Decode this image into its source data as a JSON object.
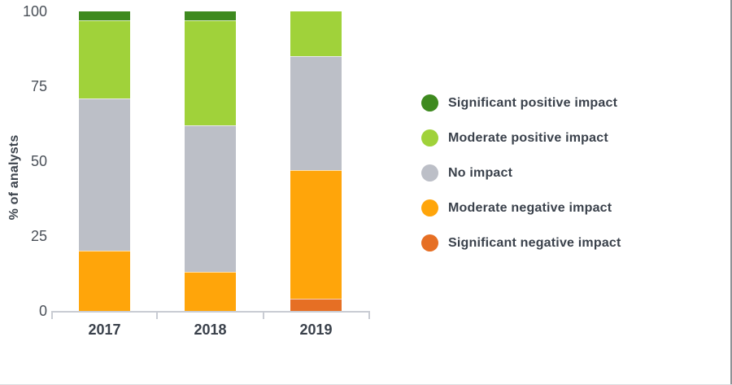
{
  "chart_data": {
    "type": "bar",
    "stacked": true,
    "title": "",
    "ylabel": "% of analysts",
    "ylim": [
      0,
      100
    ],
    "yticks": [
      0,
      25,
      50,
      75,
      100
    ],
    "grid": false,
    "legend_position": "right",
    "categories": [
      "2017",
      "2018",
      "2019"
    ],
    "series": [
      {
        "name": "Significant positive impact",
        "color": "#3e8a1f",
        "values": [
          3,
          3,
          0
        ]
      },
      {
        "name": "Moderate positive impact",
        "color": "#a0d23a",
        "values": [
          26,
          35,
          15
        ]
      },
      {
        "name": "No impact",
        "color": "#bcbfc7",
        "values": [
          51,
          49,
          38
        ]
      },
      {
        "name": "Moderate negative impact",
        "color": "#ffa50a",
        "values": [
          20,
          13,
          43
        ]
      },
      {
        "name": "Significant negative impact",
        "color": "#e66f24",
        "values": [
          0,
          0,
          4
        ]
      }
    ],
    "colors": {
      "axis": "#c9ccd3",
      "tick_text": "#4a5058",
      "label_text": "#3a414b"
    }
  }
}
